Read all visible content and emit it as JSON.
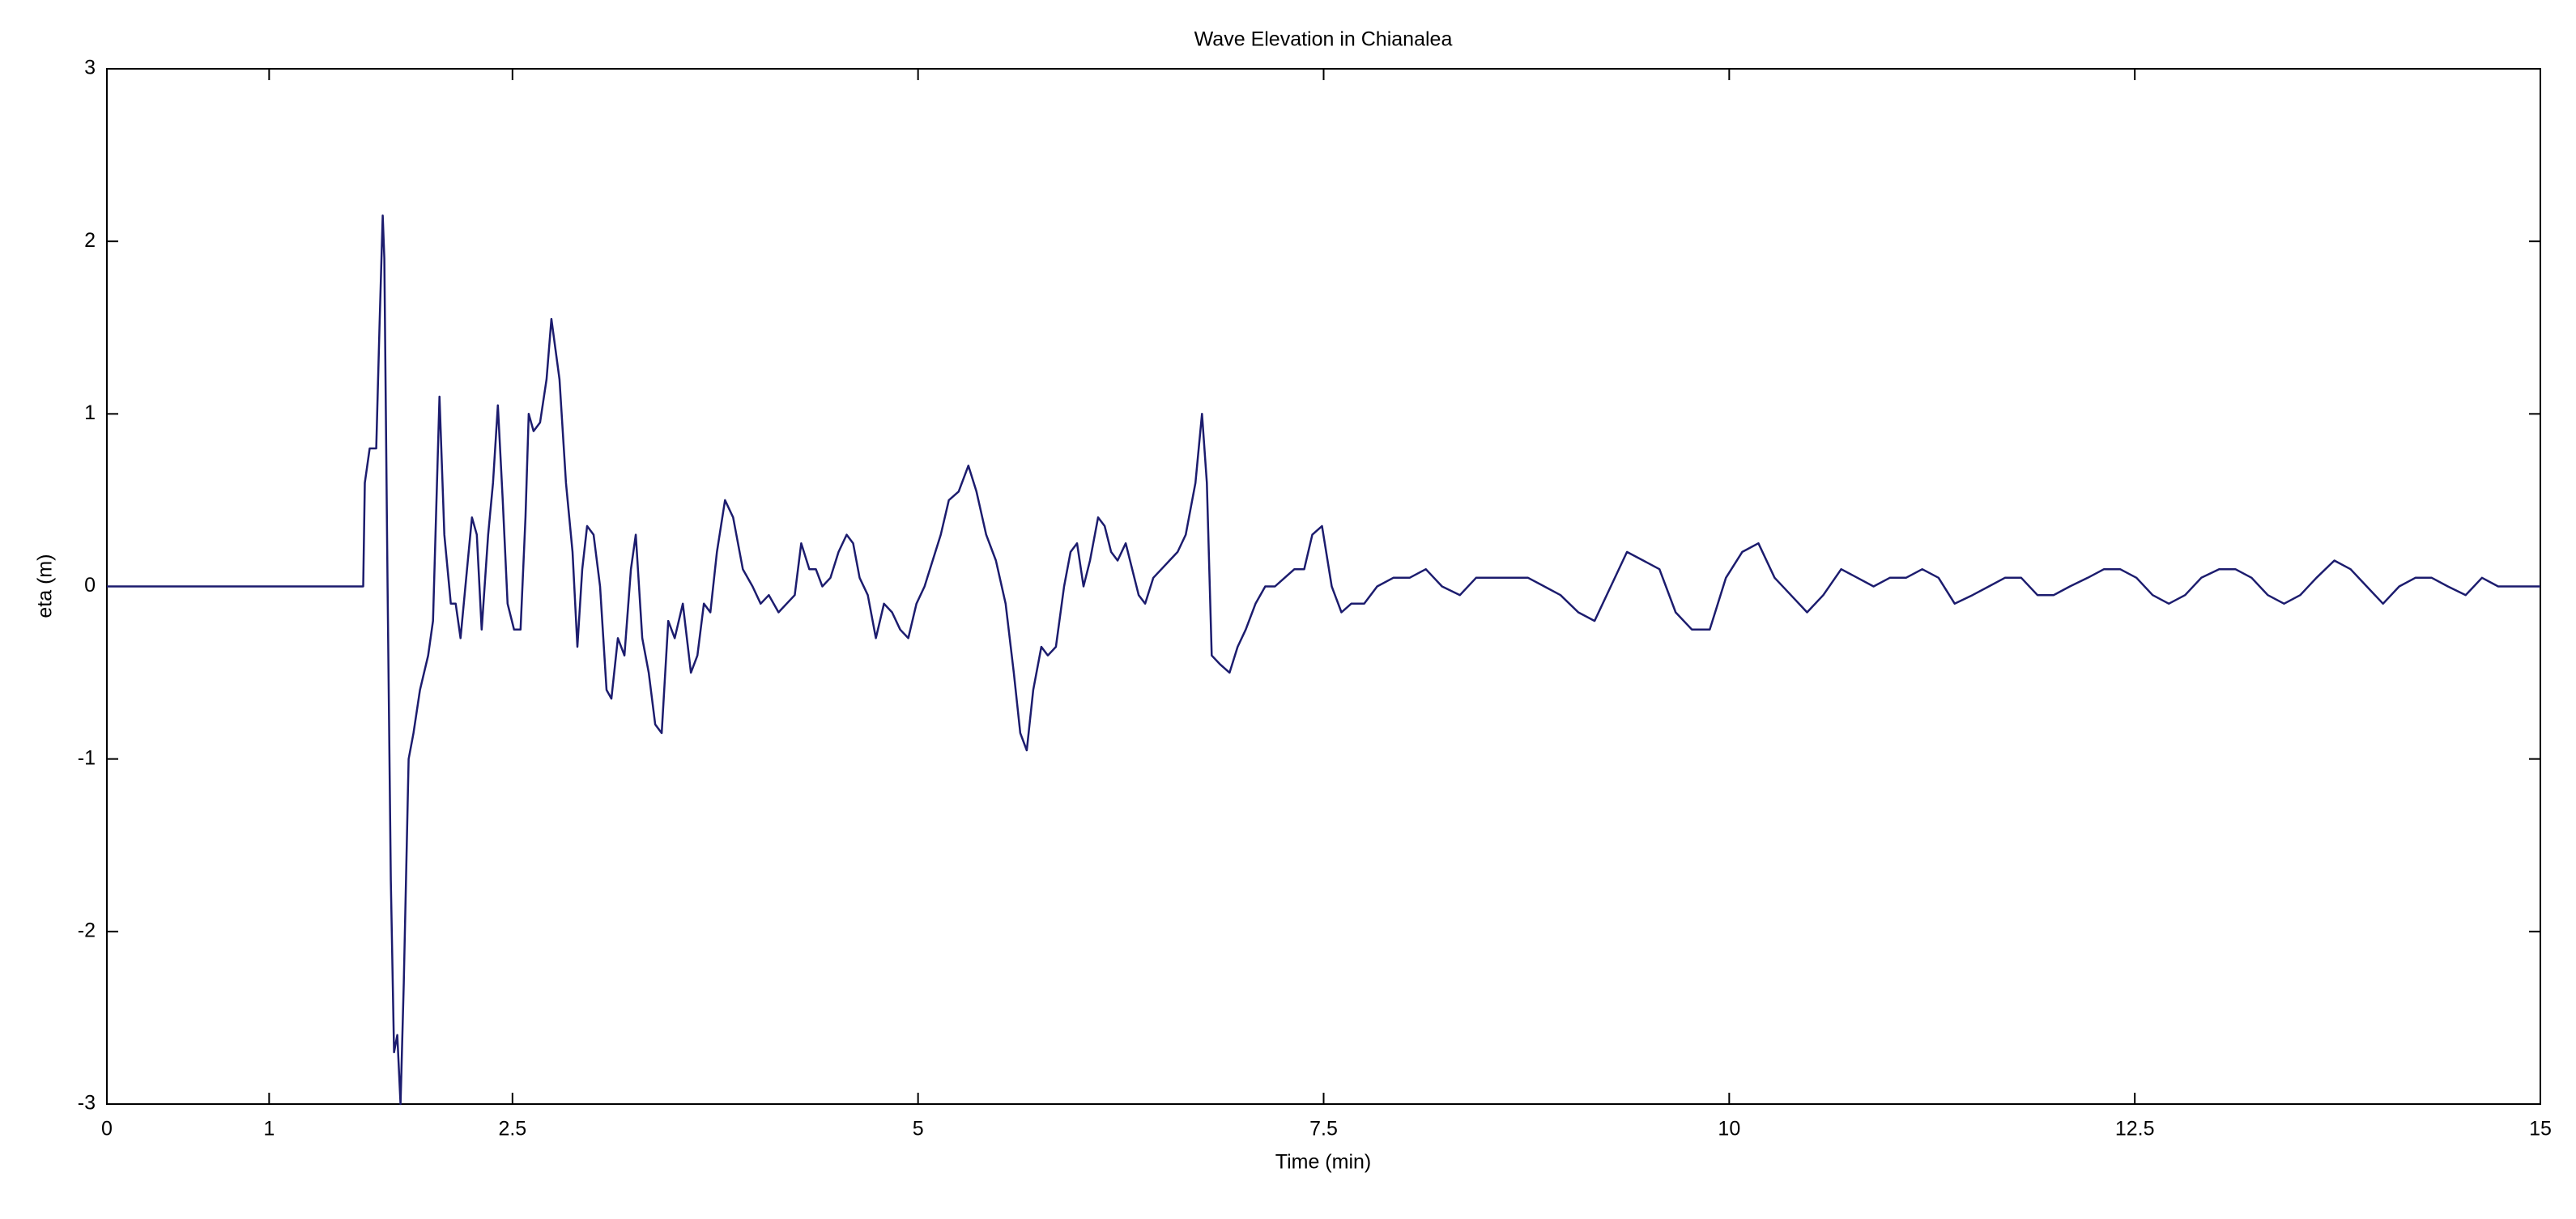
{
  "chart_data": {
    "type": "line",
    "title": "Wave Elevation in Chianalea",
    "x_label": "Time (min)",
    "y_label": "eta (m)",
    "color": "#1c1c6e",
    "xlim": [
      0,
      15
    ],
    "xticks": [
      0,
      1,
      2.5,
      5,
      7.5,
      10,
      12.5,
      15
    ],
    "ylim": [
      -3,
      3
    ],
    "yticks": [
      -3,
      -2,
      -1,
      0,
      1,
      2,
      3
    ],
    "x": [
      0,
      1.58,
      1.59,
      1.62,
      1.66,
      1.68,
      1.7,
      1.71,
      1.73,
      1.75,
      1.77,
      1.79,
      1.81,
      1.83,
      1.86,
      1.89,
      1.93,
      1.98,
      2.01,
      2.05,
      2.08,
      2.12,
      2.15,
      2.18,
      2.22,
      2.25,
      2.28,
      2.31,
      2.35,
      2.38,
      2.41,
      2.44,
      2.47,
      2.51,
      2.55,
      2.58,
      2.6,
      2.63,
      2.67,
      2.71,
      2.74,
      2.79,
      2.83,
      2.87,
      2.9,
      2.93,
      2.96,
      3.0,
      3.04,
      3.08,
      3.11,
      3.15,
      3.19,
      3.23,
      3.26,
      3.3,
      3.34,
      3.38,
      3.42,
      3.46,
      3.5,
      3.55,
      3.6,
      3.64,
      3.68,
      3.72,
      3.76,
      3.81,
      3.86,
      3.92,
      3.98,
      4.03,
      4.08,
      4.14,
      4.19,
      4.24,
      4.28,
      4.33,
      4.37,
      4.41,
      4.46,
      4.51,
      4.56,
      4.6,
      4.64,
      4.69,
      4.74,
      4.79,
      4.84,
      4.89,
      4.94,
      4.99,
      5.04,
      5.09,
      5.14,
      5.19,
      5.25,
      5.31,
      5.36,
      5.42,
      5.48,
      5.54,
      5.59,
      5.63,
      5.67,
      5.71,
      5.76,
      5.8,
      5.85,
      5.9,
      5.94,
      5.98,
      6.02,
      6.06,
      6.11,
      6.15,
      6.19,
      6.23,
      6.28,
      6.32,
      6.36,
      6.4,
      6.45,
      6.5,
      6.55,
      6.6,
      6.65,
      6.71,
      6.75,
      6.78,
      6.81,
      6.86,
      6.92,
      6.97,
      7.02,
      7.08,
      7.14,
      7.2,
      7.26,
      7.32,
      7.38,
      7.43,
      7.49,
      7.55,
      7.61,
      7.67,
      7.75,
      7.83,
      7.93,
      8.03,
      8.13,
      8.23,
      8.34,
      8.44,
      8.54,
      8.66,
      8.76,
      8.86,
      8.96,
      9.07,
      9.17,
      9.27,
      9.37,
      9.47,
      9.57,
      9.67,
      9.77,
      9.88,
      9.98,
      10.08,
      10.18,
      10.28,
      10.38,
      10.48,
      10.58,
      10.69,
      10.79,
      10.89,
      10.99,
      11.09,
      11.19,
      11.29,
      11.39,
      11.5,
      11.6,
      11.7,
      11.8,
      11.9,
      12.0,
      12.1,
      12.21,
      12.31,
      12.41,
      12.51,
      12.61,
      12.71,
      12.81,
      12.91,
      13.02,
      13.12,
      13.22,
      13.32,
      13.42,
      13.52,
      13.62,
      13.73,
      13.83,
      13.93,
      14.03,
      14.13,
      14.23,
      14.33,
      14.43,
      14.54,
      14.64,
      14.74,
      14.84,
      15
    ],
    "values": [
      0,
      0,
      0.6,
      0.8,
      0.8,
      1.5,
      2.15,
      1.9,
      0,
      -1.7,
      -2.7,
      -2.6,
      -3.0,
      -2.3,
      -1.0,
      -0.85,
      -0.6,
      -0.4,
      -0.2,
      1.1,
      0.3,
      -0.1,
      -0.1,
      -0.3,
      0.1,
      0.4,
      0.3,
      -0.25,
      0.3,
      0.6,
      1.05,
      0.5,
      -0.1,
      -0.25,
      -0.25,
      0.4,
      1.0,
      0.9,
      0.95,
      1.2,
      1.55,
      1.2,
      0.6,
      0.2,
      -0.35,
      0.1,
      0.35,
      0.3,
      0,
      -0.6,
      -0.65,
      -0.3,
      -0.4,
      0.1,
      0.3,
      -0.3,
      -0.5,
      -0.8,
      -0.85,
      -0.2,
      -0.3,
      -0.1,
      -0.5,
      -0.4,
      -0.1,
      -0.15,
      0.2,
      0.5,
      0.4,
      0.1,
      0,
      -0.1,
      -0.05,
      -0.15,
      -0.1,
      -0.05,
      0.25,
      0.1,
      0.1,
      0,
      0.05,
      0.2,
      0.3,
      0.25,
      0.05,
      -0.05,
      -0.3,
      -0.1,
      -0.15,
      -0.25,
      -0.3,
      -0.1,
      0,
      0.15,
      0.3,
      0.5,
      0.55,
      0.7,
      0.55,
      0.3,
      0.15,
      -0.1,
      -0.5,
      -0.85,
      -0.95,
      -0.6,
      -0.35,
      -0.4,
      -0.35,
      0,
      0.2,
      0.25,
      0,
      0.15,
      0.4,
      0.35,
      0.2,
      0.15,
      0.25,
      0.1,
      -0.05,
      -0.1,
      0.05,
      0.1,
      0.15,
      0.2,
      0.3,
      0.6,
      1.0,
      0.6,
      -0.4,
      -0.45,
      -0.5,
      -0.35,
      -0.25,
      -0.1,
      0,
      0,
      0.05,
      0.1,
      0.1,
      0.3,
      0.35,
      0,
      -0.15,
      -0.1,
      -0.1,
      0,
      0.05,
      0.05,
      0.1,
      0,
      -0.05,
      0.05,
      0.05,
      0.05,
      0.05,
      0,
      -0.05,
      -0.15,
      -0.2,
      0,
      0.2,
      0.15,
      0.1,
      -0.15,
      -0.25,
      -0.25,
      0.05,
      0.2,
      0.25,
      0.05,
      -0.05,
      -0.15,
      -0.05,
      0.1,
      0.05,
      0,
      0.05,
      0.05,
      0.1,
      0.05,
      -0.1,
      -0.05,
      0,
      0.05,
      0.05,
      -0.05,
      -0.05,
      0,
      0.05,
      0.1,
      0.1,
      0.05,
      -0.05,
      -0.1,
      -0.05,
      0.05,
      0.1,
      0.1,
      0.05,
      -0.05,
      -0.1,
      -0.05,
      0.05,
      0.15,
      0.1,
      0,
      -0.1,
      0,
      0.05,
      0.05,
      0,
      -0.05,
      0.05,
      0,
      0,
      0
    ]
  }
}
